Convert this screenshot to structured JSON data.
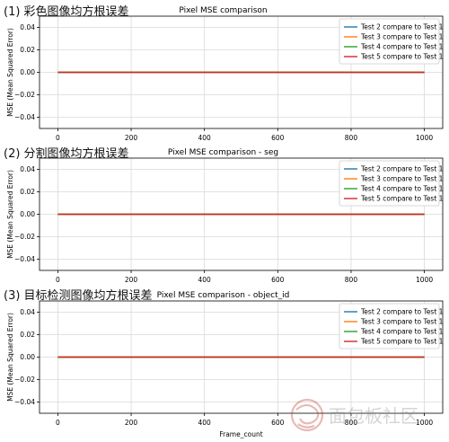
{
  "chart_data": [
    {
      "type": "line",
      "panel_heading": "(1) 彩色图像均方根误差",
      "title": "Pixel MSE comparison",
      "xlabel": "",
      "ylabel": "MSE (Mean Squared Error)",
      "xlim": [
        -50,
        1050
      ],
      "ylim": [
        -0.05,
        0.05
      ],
      "xticks": [
        0,
        200,
        400,
        600,
        800,
        1000
      ],
      "yticks": [
        0.04,
        0.02,
        0.0,
        -0.02,
        -0.04
      ],
      "ytick_labels": [
        "0.04",
        "0.02",
        "0.00",
        "−0.02",
        "−0.04"
      ],
      "grid": true,
      "legend_position": "top-right",
      "x": [
        0,
        1000
      ],
      "series": [
        {
          "name": "Test 2 compare to Test 1",
          "color": "#1f77b4",
          "values": [
            0,
            0
          ]
        },
        {
          "name": "Test 3 compare to Test 1",
          "color": "#ff7f0e",
          "values": [
            0,
            0
          ]
        },
        {
          "name": "Test 4 compare to Test 1",
          "color": "#2ca02c",
          "values": [
            0,
            0
          ]
        },
        {
          "name": "Test 5 compare to Test 1",
          "color": "#d62728",
          "values": [
            0,
            0
          ]
        }
      ]
    },
    {
      "type": "line",
      "panel_heading": "(2) 分割图像均方根误差",
      "title": "Pixel MSE comparison - seg",
      "xlabel": "",
      "ylabel": "MSE (Mean Squared Error)",
      "xlim": [
        -50,
        1050
      ],
      "ylim": [
        -0.05,
        0.05
      ],
      "xticks": [
        0,
        200,
        400,
        600,
        800,
        1000
      ],
      "yticks": [
        0.04,
        0.02,
        0.0,
        -0.02,
        -0.04
      ],
      "ytick_labels": [
        "0.04",
        "0.02",
        "0.00",
        "−0.02",
        "−0.04"
      ],
      "grid": true,
      "legend_position": "top-right",
      "x": [
        0,
        1000
      ],
      "series": [
        {
          "name": "Test 2 compare to Test 1",
          "color": "#1f77b4",
          "values": [
            0,
            0
          ]
        },
        {
          "name": "Test 3 compare to Test 1",
          "color": "#ff7f0e",
          "values": [
            0,
            0
          ]
        },
        {
          "name": "Test 4 compare to Test 1",
          "color": "#2ca02c",
          "values": [
            0,
            0
          ]
        },
        {
          "name": "Test 5 compare to Test 1",
          "color": "#d62728",
          "values": [
            0,
            0
          ]
        }
      ]
    },
    {
      "type": "line",
      "panel_heading": "(3) 目标检测图像均方根误差",
      "title": "Pixel MSE comparison - object_id",
      "xlabel": "Frame_count",
      "ylabel": "MSE (Mean Squared Error)",
      "xlim": [
        -50,
        1050
      ],
      "ylim": [
        -0.05,
        0.05
      ],
      "xticks": [
        0,
        200,
        400,
        600,
        800,
        1000
      ],
      "yticks": [
        0.04,
        0.02,
        0.0,
        -0.02,
        -0.04
      ],
      "ytick_labels": [
        "0.04",
        "0.02",
        "0.00",
        "−0.02",
        "−0.04"
      ],
      "grid": true,
      "legend_position": "top-right",
      "x": [
        0,
        1000
      ],
      "series": [
        {
          "name": "Test 2 compare to Test 1",
          "color": "#1f77b4",
          "values": [
            0,
            0
          ]
        },
        {
          "name": "Test 3 compare to Test 1",
          "color": "#ff7f0e",
          "values": [
            0,
            0
          ]
        },
        {
          "name": "Test 4 compare to Test 1",
          "color": "#2ca02c",
          "values": [
            0,
            0
          ]
        },
        {
          "name": "Test 5 compare to Test 1",
          "color": "#d62728",
          "values": [
            0,
            0
          ]
        }
      ]
    }
  ],
  "watermark": {
    "icon": "swirl-logo-icon",
    "text": "面包板社区"
  }
}
